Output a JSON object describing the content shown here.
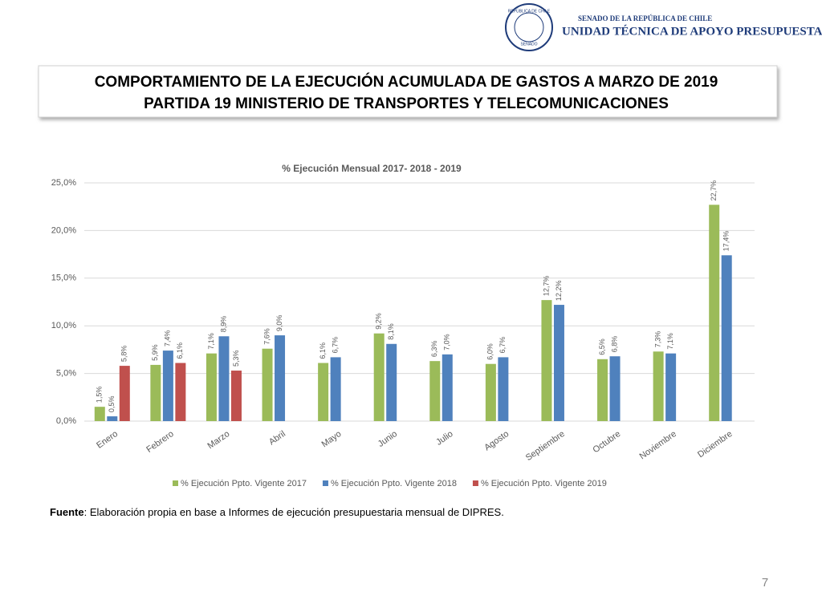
{
  "header": {
    "seal_top": "REPÚBLICA DE CHILE",
    "seal_bottom": "SENADO",
    "org_top": "SENADO DE LA REPÚBLICA DE CHILE",
    "org_main": "UNIDAD TÉCNICA DE APOYO PRESUPUESTARIO"
  },
  "slide_title": [
    "COMPORTAMIENTO DE LA EJECUCIÓN ACUMULADA DE GASTOS A MARZO DE 2019",
    "PARTIDA 19 MINISTERIO DE TRANSPORTES Y TELECOMUNICACIONES"
  ],
  "chart_data": {
    "type": "bar",
    "title": "% Ejecución Mensual 2017- 2018 - 2019",
    "categories": [
      "Enero",
      "Febrero",
      "Marzo",
      "Abril",
      "Mayo",
      "Junio",
      "Julio",
      "Agosto",
      "Septiembre",
      "Octubre",
      "Noviembre",
      "Diciembre"
    ],
    "series": [
      {
        "name": "% Ejecución Ppto. Vigente 2017",
        "color": "#9bbb59",
        "values": [
          1.5,
          5.9,
          7.1,
          7.6,
          6.1,
          9.2,
          6.3,
          6.0,
          12.7,
          6.5,
          7.3,
          22.7
        ],
        "value_labels": [
          "1,5%",
          "5,9%",
          "7,1%",
          "7,6%",
          "6,1%",
          "9,2%",
          "6,3%",
          "6,0%",
          "12,7%",
          "6,5%",
          "7,3%",
          "22,7%"
        ]
      },
      {
        "name": "% Ejecución Ppto. Vigente 2018",
        "color": "#4f81bd",
        "values": [
          0.5,
          7.4,
          8.9,
          9.0,
          6.7,
          8.1,
          7.0,
          6.7,
          12.2,
          6.8,
          7.1,
          17.4
        ],
        "value_labels": [
          "0,5%",
          "7,4%",
          "8,9%",
          "9,0%",
          "6,7%",
          "8,1%",
          "7,0%",
          "6,7%",
          "12,2%",
          "6,8%",
          "7,1%",
          "17,4%"
        ]
      },
      {
        "name": "% Ejecución Ppto. Vigente 2019",
        "color": "#c0504d",
        "values": [
          5.8,
          6.1,
          5.3,
          null,
          null,
          null,
          null,
          null,
          null,
          null,
          null,
          null
        ],
        "value_labels": [
          "5,8%",
          "6,1%",
          "5,3%",
          null,
          null,
          null,
          null,
          null,
          null,
          null,
          null,
          null
        ]
      }
    ],
    "ylim": [
      0,
      25
    ],
    "yticks": [
      {
        "value": 0,
        "label": "0,0%"
      },
      {
        "value": 5,
        "label": "5,0%"
      },
      {
        "value": 10,
        "label": "10,0%"
      },
      {
        "value": 15,
        "label": "15,0%"
      },
      {
        "value": 20,
        "label": "20,0%"
      },
      {
        "value": 25,
        "label": "25,0%"
      }
    ],
    "grid": true,
    "legend": "bottom"
  },
  "source": {
    "label": "Fuente",
    "text": ": Elaboración propia en base  a Informes de ejecución presupuestaria mensual de DIPRES."
  },
  "page_number": "7"
}
